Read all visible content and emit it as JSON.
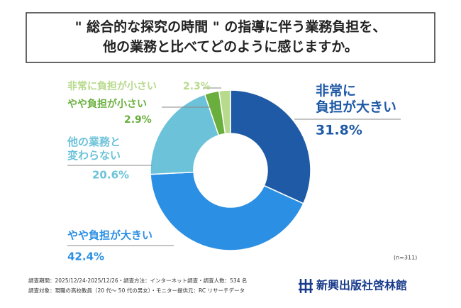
{
  "chart_data": {
    "type": "pie",
    "title": "\" 総合的な探究の時間 \" の指導に伴う業務負担を、\n他の業務と比べてどのように感じますか。",
    "categories": [
      "非常に\n負担が大きい",
      "やや負担が大きい",
      "他の業務と\n変わらない",
      "やや負担が小さい",
      "非常に負担が小さい"
    ],
    "values": [
      31.8,
      42.4,
      20.6,
      2.9,
      2.3
    ],
    "value_labels": [
      "31.8%",
      "42.4%",
      "20.6%",
      "2.9%",
      "2.3%"
    ],
    "colors": [
      "#1f5aa6",
      "#2b8fe3",
      "#6cc2d9",
      "#6aaf3d",
      "#b7da8c"
    ],
    "note": "(n=311)",
    "footnotes": [
      "調査期間：2025/12/24-2025/12/26・調査方法：インターネット調査・調査人数：534 名",
      "調査対象：現職の高校教員（20 代〜 50 代の男女）・モニター提供元：RC リサーチデータ"
    ],
    "publisher": "新興出版社啓林館"
  }
}
